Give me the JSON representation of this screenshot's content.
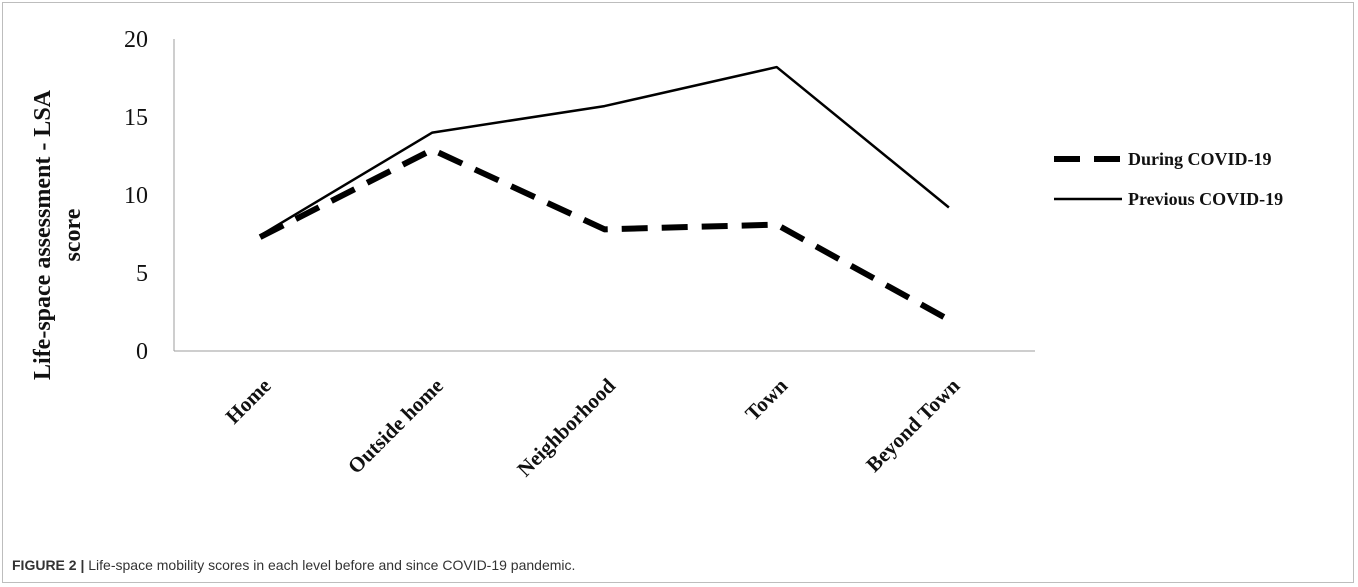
{
  "chart_data": {
    "type": "line",
    "categories": [
      "Home",
      "Outside home",
      "Neighborhood",
      "Town",
      "Beyond Town"
    ],
    "series": [
      {
        "name": "During COVID-19",
        "values": [
          7.3,
          12.9,
          7.8,
          8.1,
          2.0
        ],
        "style": "dashed",
        "color": "#000000"
      },
      {
        "name": "Previous COVID-19",
        "values": [
          7.4,
          14.0,
          15.7,
          18.2,
          9.2
        ],
        "style": "solid",
        "color": "#000000"
      }
    ],
    "ylabel_lines": [
      "Life-space assessment - LSA",
      "score"
    ],
    "xlabel": "",
    "ylim": [
      0,
      20
    ],
    "yticks": [
      0,
      5,
      10,
      15,
      20
    ],
    "grid": false,
    "legend_position": "right"
  },
  "caption": {
    "lead": "FIGURE 2 |",
    "text": " Life-space mobility scores in each level before and since COVID-19 pandemic."
  }
}
